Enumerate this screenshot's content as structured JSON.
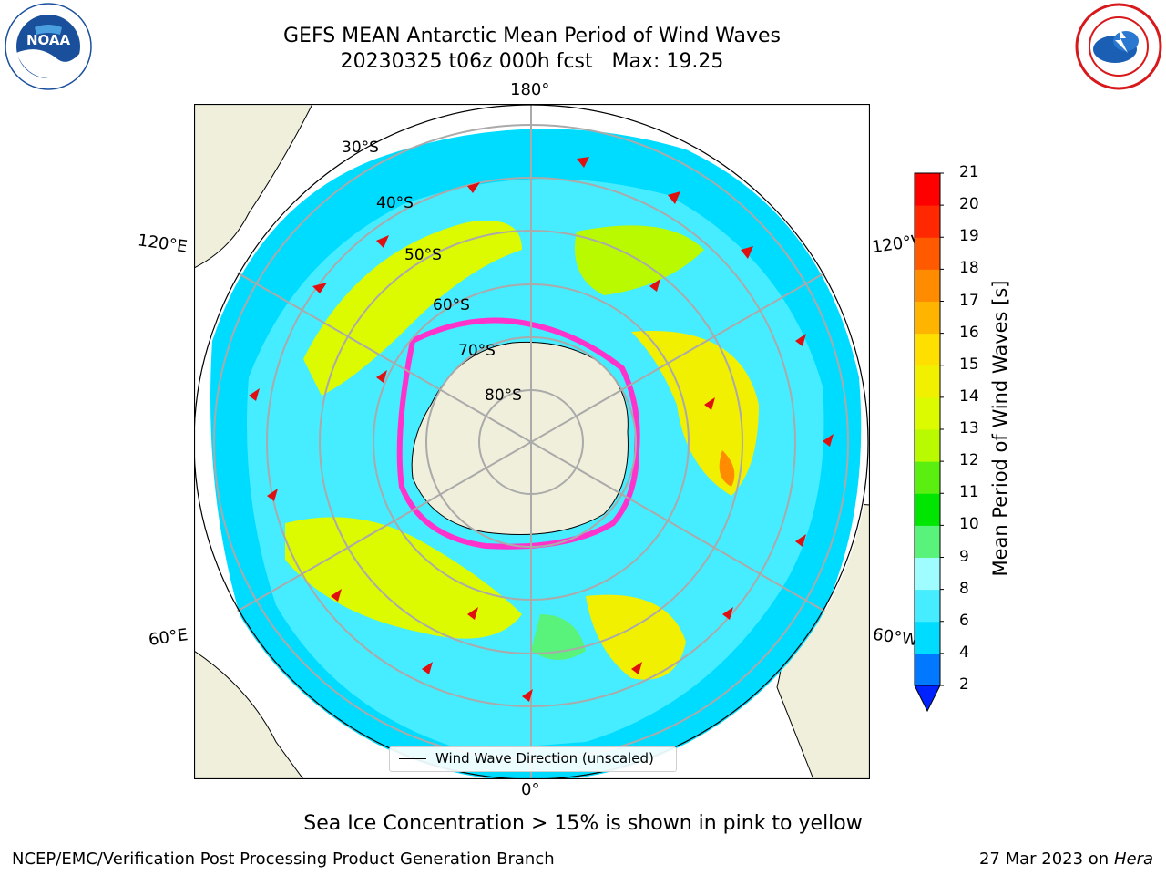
{
  "title": {
    "line1": "GEFS MEAN Antarctic Mean Period of Wind Waves",
    "line2": "20230325 t06z 000h fcst   Max: 19.25"
  },
  "logos": {
    "left": {
      "text": "NOAA",
      "icon": "noaa-logo-icon",
      "color": "#1a4f9c"
    },
    "right": {
      "icon": "nws-logo-icon",
      "color": "#d7191c"
    }
  },
  "map": {
    "longitude_labels": {
      "top": "180°",
      "bottom": "0°",
      "left_upper": "120°E",
      "right_upper": "120°W",
      "left_lower": "60°E",
      "right_lower": "60°W"
    },
    "latitude_labels": [
      "30°S",
      "40°S",
      "50°S",
      "60°S",
      "70°S",
      "80°S"
    ],
    "land_color": "#efefdb",
    "sea_ice_color": "#ff33cc"
  },
  "legend": {
    "label": "Wind Wave Direction (unscaled)"
  },
  "colorbar": {
    "label": "Mean Period of Wind Waves [s]",
    "ticks": [
      "2",
      "4",
      "6",
      "8",
      "9",
      "10",
      "11",
      "12",
      "13",
      "14",
      "15",
      "16",
      "17",
      "18",
      "19",
      "20",
      "21"
    ],
    "colors": [
      "#0022ff",
      "#0078ff",
      "#00dcff",
      "#46ecff",
      "#9ffcff",
      "#59f27a",
      "#00e600",
      "#5aef10",
      "#b9fa00",
      "#dcfa00",
      "#f0f000",
      "#ffdf00",
      "#ffb400",
      "#ff8c00",
      "#ff5a00",
      "#ff2800",
      "#ff0000"
    ]
  },
  "subcaption": "Sea Ice Concentration > 15% is shown in pink to yellow",
  "footer": {
    "left": "NCEP/EMC/Verification Post Processing Product Generation Branch",
    "right_date": "27 Mar 2023 on",
    "right_machine": "Hera"
  }
}
